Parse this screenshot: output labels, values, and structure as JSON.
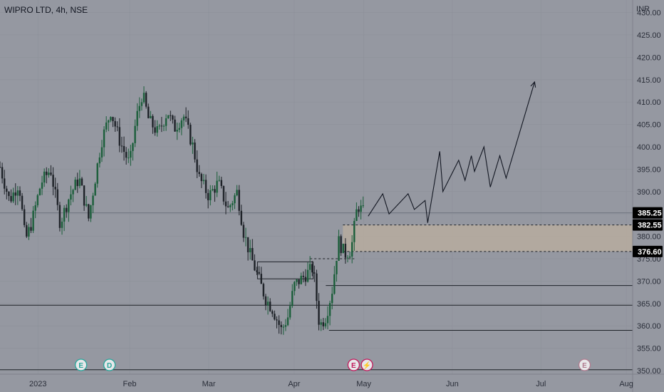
{
  "header": {
    "symbol_title": "WIPRO LTD, 4h, NSE",
    "currency": "INR"
  },
  "chart_data": {
    "type": "candlestick",
    "y_axis": {
      "range": [
        349.2,
        432.8
      ],
      "ticks": [
        430,
        425,
        420,
        415,
        410,
        405,
        400,
        395,
        390,
        385,
        380,
        375,
        370,
        365,
        360,
        355,
        350
      ],
      "tick_labels": [
        "430.00",
        "425.00",
        "420.00",
        "415.00",
        "410.00",
        "405.00",
        "400.00",
        "395.00",
        "390.00",
        "385.00",
        "380.00",
        "375.00",
        "370.00",
        "365.00",
        "360.00",
        "355.00",
        "350.00"
      ]
    },
    "x_axis": {
      "labels": [
        {
          "text": "2023",
          "t": 0.06
        },
        {
          "text": "Feb",
          "t": 0.205
        },
        {
          "text": "Mar",
          "t": 0.33
        },
        {
          "text": "Apr",
          "t": 0.465
        },
        {
          "text": "May",
          "t": 0.575
        },
        {
          "text": "Jun",
          "t": 0.715
        },
        {
          "text": "Jul",
          "t": 0.855
        },
        {
          "text": "Aug",
          "t": 0.99
        }
      ]
    },
    "price_labels": [
      {
        "value": 385.25,
        "text": "385.25",
        "style": "last"
      },
      {
        "value": 382.55,
        "text": "382.55",
        "style": "level"
      },
      {
        "value": 376.6,
        "text": "376.60",
        "style": "level"
      }
    ],
    "price_path": [
      [
        0.0,
        395.5
      ],
      [
        0.015,
        388
      ],
      [
        0.03,
        392
      ],
      [
        0.04,
        379
      ],
      [
        0.05,
        383
      ],
      [
        0.065,
        392
      ],
      [
        0.08,
        395
      ],
      [
        0.095,
        383
      ],
      [
        0.11,
        389
      ],
      [
        0.125,
        393
      ],
      [
        0.14,
        384
      ],
      [
        0.16,
        401
      ],
      [
        0.175,
        408
      ],
      [
        0.19,
        401
      ],
      [
        0.205,
        396
      ],
      [
        0.215,
        406
      ],
      [
        0.225,
        412
      ],
      [
        0.235,
        406
      ],
      [
        0.25,
        403
      ],
      [
        0.265,
        408
      ],
      [
        0.275,
        404
      ],
      [
        0.29,
        407
      ],
      [
        0.305,
        400
      ],
      [
        0.315,
        393
      ],
      [
        0.33,
        389
      ],
      [
        0.345,
        392
      ],
      [
        0.36,
        386
      ],
      [
        0.375,
        390
      ],
      [
        0.385,
        381
      ],
      [
        0.395,
        376
      ],
      [
        0.405,
        372
      ],
      [
        0.42,
        366
      ],
      [
        0.43,
        364
      ],
      [
        0.445,
        359
      ],
      [
        0.455,
        362
      ],
      [
        0.465,
        369
      ],
      [
        0.48,
        371
      ],
      [
        0.495,
        373
      ],
      [
        0.505,
        360
      ],
      [
        0.515,
        362
      ],
      [
        0.525,
        368
      ],
      [
        0.535,
        379
      ],
      [
        0.545,
        376
      ],
      [
        0.555,
        377
      ],
      [
        0.565,
        387
      ],
      [
        0.575,
        385.25
      ]
    ],
    "projection": [
      [
        0.582,
        384.5
      ],
      [
        0.605,
        389.5
      ],
      [
        0.615,
        385
      ],
      [
        0.645,
        389.5
      ],
      [
        0.655,
        386
      ],
      [
        0.672,
        388
      ],
      [
        0.676,
        383
      ],
      [
        0.695,
        399
      ],
      [
        0.7,
        390
      ],
      [
        0.725,
        397
      ],
      [
        0.735,
        392.5
      ],
      [
        0.745,
        398
      ],
      [
        0.75,
        394.5
      ],
      [
        0.765,
        400
      ],
      [
        0.775,
        391
      ],
      [
        0.79,
        398
      ],
      [
        0.8,
        393
      ],
      [
        0.845,
        414.5
      ]
    ],
    "zones": [
      {
        "name": "demand-zone",
        "top": 382.55,
        "bottom": 376.6,
        "t_start": 0.542,
        "t_end": 1.0,
        "color": "#b5ab9f"
      }
    ],
    "horizontal_lines": [
      {
        "name": "current-price-line",
        "value": 385.25,
        "t_start": 0.0,
        "style": "solid",
        "color": "#707580"
      },
      {
        "name": "dashed-level-upper",
        "value": 382.55,
        "t_start": 0.542,
        "style": "dashed",
        "color": "#1e2228"
      },
      {
        "name": "dashed-level-lower",
        "value": 376.6,
        "t_start": 0.542,
        "style": "dashed",
        "color": "#1e2228"
      },
      {
        "name": "dashed-level-mid",
        "value": 375.0,
        "t_start": 0.49,
        "t_end": 0.56,
        "style": "dashed",
        "color": "#1e2228"
      },
      {
        "name": "support-line-369",
        "value": 369.0,
        "t_start": 0.515,
        "style": "solid",
        "color": "#1e2228"
      },
      {
        "name": "support-line-364",
        "value": 364.6,
        "t_start": 0.0,
        "style": "solid",
        "color": "#1e2228"
      },
      {
        "name": "support-line-359",
        "value": 359.0,
        "t_start": 0.52,
        "style": "solid",
        "color": "#1e2228"
      },
      {
        "name": "support-line-350",
        "value": 350.2,
        "t_start": 0.0,
        "style": "solid",
        "color": "#1e2228"
      }
    ],
    "boxes": [
      {
        "name": "consolidation-box",
        "t_start": 0.407,
        "t_end": 0.495,
        "top": 374.3,
        "bottom": 370.5
      }
    ],
    "event_markers": [
      {
        "name": "earnings-marker",
        "letter": "E",
        "t": 0.128,
        "color": "#26a69a"
      },
      {
        "name": "dividend-marker",
        "letter": "D",
        "t": 0.173,
        "color": "#26a69a"
      },
      {
        "name": "earnings-marker",
        "letter": "E",
        "t": 0.559,
        "color": "#c2185b"
      },
      {
        "name": "split-marker",
        "letter": "⚡",
        "t": 0.58,
        "color": "#c2185b"
      },
      {
        "name": "earnings-marker-future",
        "letter": "E",
        "t": 0.924,
        "color": "#b07b8f"
      }
    ],
    "colors": {
      "background": "#9598a1",
      "up_candle": "#1b5e3a",
      "down_candle": "#1e2228",
      "grid": "#8d9099",
      "axis_text": "#2a2e39",
      "label_bg": "#000000",
      "label_text": "#ffffff"
    }
  }
}
